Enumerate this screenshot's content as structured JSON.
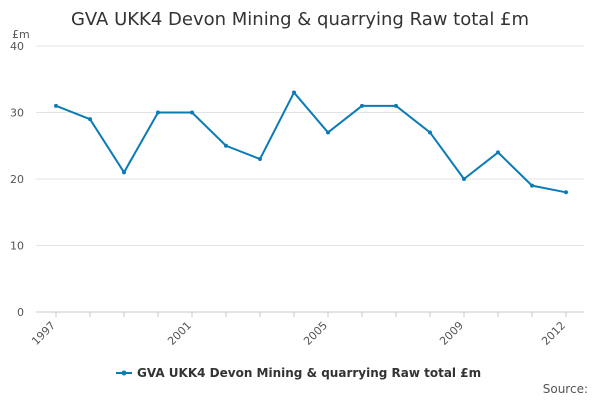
{
  "chart_data": {
    "type": "line",
    "title": "GVA UKK4 Devon Mining & quarrying Raw total £m",
    "ylabel": "£m",
    "xlabel": "",
    "ylim": [
      0,
      40
    ],
    "yticks": [
      0,
      10,
      20,
      30,
      40
    ],
    "x": [
      1997,
      1998,
      1999,
      2000,
      2001,
      2002,
      2003,
      2004,
      2005,
      2006,
      2007,
      2008,
      2009,
      2010,
      2011,
      2012
    ],
    "x_tick_labels": [
      "1997",
      "2001",
      "2005",
      "2009",
      "2012"
    ],
    "series": [
      {
        "name": "GVA UKK4 Devon Mining & quarrying Raw total £m",
        "color": "#0b7bb5",
        "values": [
          31,
          29,
          21,
          30,
          30,
          25,
          23,
          33,
          27,
          31,
          31,
          27,
          20,
          24,
          19,
          18
        ]
      }
    ],
    "grid": true,
    "legend_position": "bottom"
  },
  "source_label": "Source:"
}
